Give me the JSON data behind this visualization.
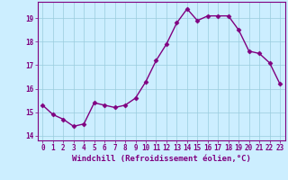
{
  "x": [
    0,
    1,
    2,
    3,
    4,
    5,
    6,
    7,
    8,
    9,
    10,
    11,
    12,
    13,
    14,
    15,
    16,
    17,
    18,
    19,
    20,
    21,
    22,
    23
  ],
  "y": [
    15.3,
    14.9,
    14.7,
    14.4,
    14.5,
    15.4,
    15.3,
    15.2,
    15.3,
    15.6,
    16.3,
    17.2,
    17.9,
    18.8,
    19.4,
    18.9,
    19.1,
    19.1,
    19.1,
    18.5,
    17.6,
    17.5,
    17.1,
    16.2
  ],
  "line_color": "#800080",
  "marker": "D",
  "marker_size": 2.5,
  "bg_color": "#cceeff",
  "grid_color": "#99ccdd",
  "xlabel": "Windchill (Refroidissement éolien,°C)",
  "ylim": [
    13.8,
    19.7
  ],
  "xlim": [
    -0.5,
    23.5
  ],
  "yticks": [
    14,
    15,
    16,
    17,
    18,
    19
  ],
  "xticks": [
    0,
    1,
    2,
    3,
    4,
    5,
    6,
    7,
    8,
    9,
    10,
    11,
    12,
    13,
    14,
    15,
    16,
    17,
    18,
    19,
    20,
    21,
    22,
    23
  ],
  "tick_label_fontsize": 5.5,
  "xlabel_fontsize": 6.5,
  "line_width": 1.0
}
